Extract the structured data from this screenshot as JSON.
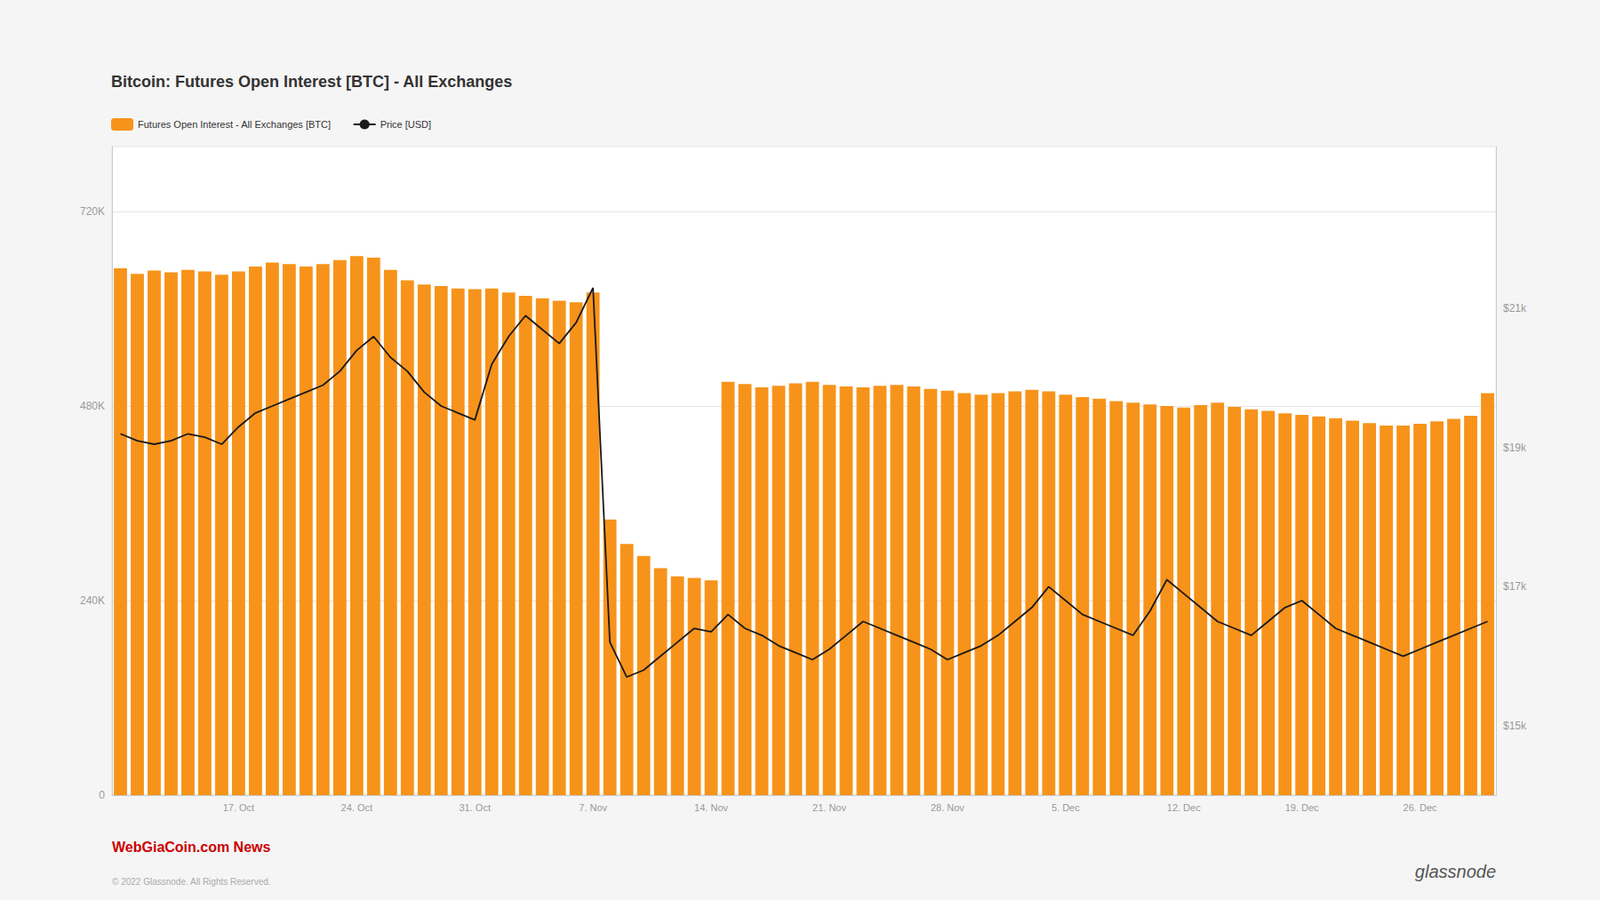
{
  "chart_data": {
    "type": "bar",
    "title": "Bitcoin: Futures Open Interest [BTC] - All Exchanges",
    "annotations": [
      "WebGiaCoin.com News",
      "© 2022 Glassnode. All Rights Reserved.",
      "glassnode"
    ],
    "categories": [
      null,
      null,
      null,
      null,
      null,
      null,
      null,
      "17. Oct",
      null,
      null,
      null,
      null,
      null,
      null,
      "24. Oct",
      null,
      null,
      null,
      null,
      null,
      null,
      "31. Oct",
      null,
      null,
      null,
      null,
      null,
      null,
      "7. Nov",
      null,
      null,
      null,
      null,
      null,
      null,
      "14. Nov",
      null,
      null,
      null,
      null,
      null,
      null,
      "21. Nov",
      null,
      null,
      null,
      null,
      null,
      null,
      "28. Nov",
      null,
      null,
      null,
      null,
      null,
      null,
      "5. Dec",
      null,
      null,
      null,
      null,
      null,
      null,
      "12. Dec",
      null,
      null,
      null,
      null,
      null,
      null,
      "19. Dec",
      null,
      null,
      null,
      null,
      null,
      null,
      "26. Dec",
      null,
      null,
      null,
      null
    ],
    "series": [
      {
        "name": "Futures Open Interest - All Exchanges [BTC]",
        "type": "bar",
        "color": "#F7931A",
        "values": [
          650000,
          643000,
          647000,
          645000,
          648000,
          646000,
          642000,
          646000,
          652000,
          657000,
          655000,
          652000,
          655000,
          660000,
          665000,
          663000,
          648000,
          635000,
          630000,
          628000,
          625000,
          624000,
          625000,
          620000,
          616000,
          613000,
          610000,
          608000,
          620000,
          340000,
          310000,
          295000,
          280000,
          270000,
          268000,
          265000,
          510000,
          507000,
          503000,
          505000,
          508000,
          510000,
          506000,
          504000,
          503000,
          505000,
          506000,
          504000,
          501000,
          499000,
          496000,
          494000,
          496000,
          498000,
          500000,
          498000,
          494000,
          491000,
          489000,
          486000,
          484000,
          482000,
          480000,
          478000,
          481000,
          484000,
          479000,
          476000,
          474000,
          471000,
          469000,
          467000,
          465000,
          462000,
          459000,
          456000,
          456000,
          458000,
          461000,
          464000,
          468000,
          496000
        ]
      },
      {
        "name": "Price [USD]",
        "type": "line",
        "axis": "y2",
        "color": "#1a1a1a",
        "values": [
          19200,
          19100,
          19050,
          19100,
          19200,
          19150,
          19050,
          19300,
          19500,
          19600,
          19700,
          19800,
          19900,
          20100,
          20400,
          20600,
          20300,
          20100,
          19800,
          19600,
          19500,
          19400,
          20200,
          20600,
          20900,
          20700,
          20500,
          20800,
          21300,
          16200,
          15700,
          15800,
          16000,
          16200,
          16400,
          16350,
          16600,
          16400,
          16300,
          16150,
          16050,
          15950,
          16100,
          16300,
          16500,
          16400,
          16300,
          16200,
          16100,
          15950,
          16050,
          16150,
          16300,
          16500,
          16700,
          17000,
          16800,
          16600,
          16500,
          16400,
          16300,
          16650,
          17100,
          16900,
          16700,
          16500,
          16400,
          16300,
          16500,
          16700,
          16800,
          16600,
          16400,
          16300,
          16200,
          16100,
          16000,
          16100,
          16200,
          16300,
          16400,
          16500
        ]
      }
    ],
    "ylim": [
      0,
      800000
    ],
    "yticks": [
      0,
      {
        "value": 240000,
        "label": "240K"
      },
      {
        "value": 480000,
        "label": "480K"
      },
      {
        "value": 720000,
        "label": "720K"
      }
    ],
    "y2lim": [
      14000,
      23333
    ],
    "y2ticks": [
      {
        "value": 15000,
        "label": "$15k"
      },
      {
        "value": 17000,
        "label": "$17k"
      },
      {
        "value": 19000,
        "label": "$19k"
      },
      {
        "value": 21000,
        "label": "$21k"
      }
    ],
    "grid": true,
    "legend": "upper left"
  }
}
